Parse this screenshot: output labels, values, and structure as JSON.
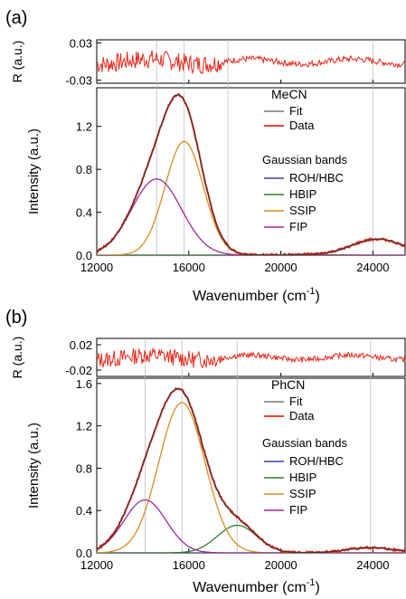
{
  "chart_data": [
    {
      "type": "line",
      "panel_label": "(a)",
      "solvent": "MeCN",
      "xlabel_main": "Wavenumber (cm",
      "xlabel_sup": "-1",
      "xlabel_close": ")",
      "ylabel": "Intensity (a.u.)",
      "residual_ylabel": "R (a.u.)",
      "xlim": [
        12000,
        25400
      ],
      "ylim": [
        0,
        1.56
      ],
      "x_ticks": [
        12000,
        16000,
        20000,
        24000
      ],
      "x_tick_labels": [
        "12000",
        "16000",
        "20000",
        "24000"
      ],
      "y_ticks": [
        0.0,
        0.4,
        0.8,
        1.2
      ],
      "y_tick_labels": [
        "0.0",
        "0.4",
        "0.8",
        "1.2"
      ],
      "residual_ylim": [
        -0.035,
        0.035
      ],
      "residual_ticks": [
        0.03,
        -0.03
      ],
      "residual_tick_labels": [
        "0.03",
        "-0.03"
      ],
      "guide_lines_x": [
        14600,
        15800,
        17700,
        24000
      ],
      "legend_fit": [
        "Fit",
        "Data"
      ],
      "legend_bands_title": "Gaussian bands",
      "series": [
        {
          "name": "ROH/HBC",
          "color": "#3b3bb0",
          "center": 24200,
          "amplitude": 0.15,
          "sigma": 1100
        },
        {
          "name": "HBIP",
          "color": "#2e7d32",
          "center": 21000,
          "amplitude": 0.004,
          "sigma": 1200
        },
        {
          "name": "SSIP",
          "color": "#d98c1f",
          "center": 15800,
          "amplitude": 1.06,
          "sigma": 830
        },
        {
          "name": "FIP",
          "color": "#a0279c",
          "center": 14600,
          "amplitude": 0.71,
          "sigma": 1080
        }
      ],
      "fit_color": "#333333",
      "data_color": "#e8281b",
      "grid": false,
      "legend_placement": "right"
    },
    {
      "type": "line",
      "panel_label": "(b)",
      "solvent": "PhCN",
      "xlabel_main": "Wavenumber (cm",
      "xlabel_sup": "-1",
      "xlabel_close": ")",
      "ylabel": "Intensity (a.u.)",
      "residual_ylabel": "R (a.u.)",
      "xlim": [
        12000,
        25400
      ],
      "ylim": [
        0,
        1.65
      ],
      "x_ticks": [
        12000,
        16000,
        20000,
        24000
      ],
      "x_tick_labels": [
        "12000",
        "16000",
        "20000",
        "24000"
      ],
      "y_ticks": [
        0.0,
        0.4,
        0.8,
        1.2,
        1.6
      ],
      "y_tick_labels": [
        "0.0",
        "0.4",
        "0.8",
        "1.2",
        "1.6"
      ],
      "residual_ylim": [
        -0.03,
        0.03
      ],
      "residual_ticks": [
        0.02,
        -0.02
      ],
      "residual_tick_labels": [
        "0.02",
        "-0.02"
      ],
      "guide_lines_x": [
        14100,
        15700,
        18100,
        23900
      ],
      "legend_fit": [
        "Fit",
        "Data"
      ],
      "legend_bands_title": "Gaussian bands",
      "series": [
        {
          "name": "ROH/HBC",
          "color": "#3b3bb0",
          "center": 23900,
          "amplitude": 0.05,
          "sigma": 1000
        },
        {
          "name": "HBIP",
          "color": "#2e7d32",
          "center": 18100,
          "amplitude": 0.26,
          "sigma": 860
        },
        {
          "name": "SSIP",
          "color": "#d98c1f",
          "center": 15700,
          "amplitude": 1.42,
          "sigma": 1000
        },
        {
          "name": "FIP",
          "color": "#a0279c",
          "center": 14100,
          "amplitude": 0.5,
          "sigma": 920
        }
      ],
      "fit_color": "#333333",
      "data_color": "#e8281b",
      "grid": false,
      "legend_placement": "right"
    }
  ]
}
